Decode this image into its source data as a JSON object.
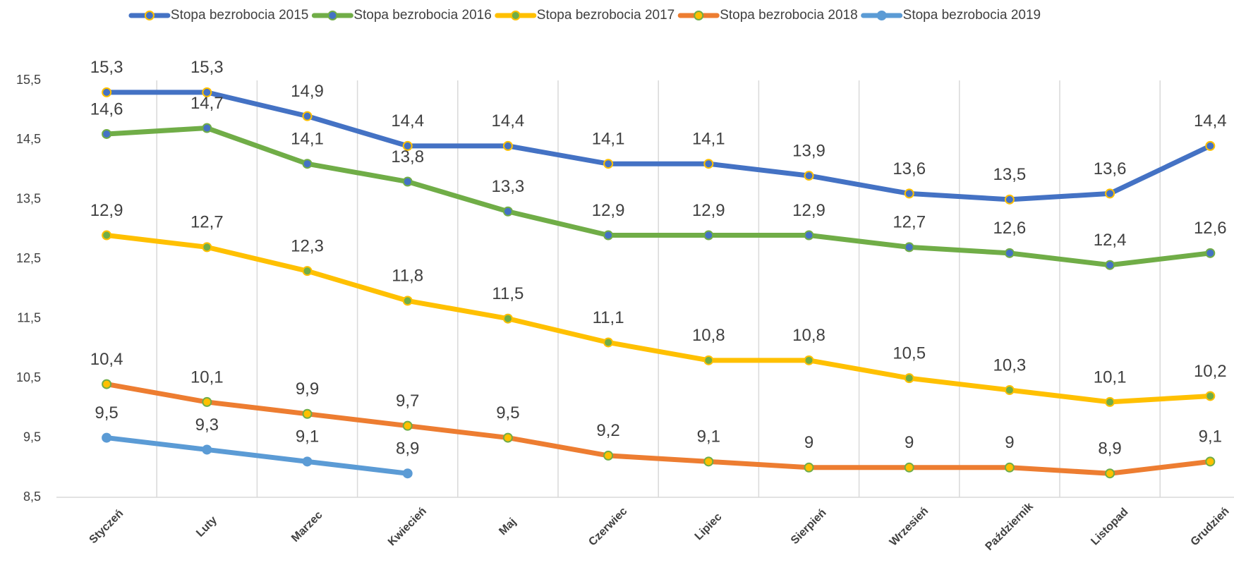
{
  "chart_data": {
    "type": "line",
    "categories": [
      "Styczeń",
      "Luty",
      "Marzec",
      "Kwiecień",
      "Maj",
      "Czerwiec",
      "Lipiec",
      "Sierpień",
      "Wrzesień",
      "Październik",
      "Listopad",
      "Grudzień"
    ],
    "series": [
      {
        "name": "Stopa bezrobocia 2015",
        "color": "#4472c4",
        "marker_fill": "#4472c4",
        "marker_edge": "#ffc000",
        "values": [
          15.3,
          15.3,
          14.9,
          14.4,
          14.4,
          14.1,
          14.1,
          13.9,
          13.6,
          13.5,
          13.6,
          14.4
        ],
        "value_labels": [
          "15,3",
          "15,3",
          "14,9",
          "14,4",
          "14,4",
          "14,1",
          "14,1",
          "13,9",
          "13,6",
          "13,5",
          "13,6",
          "14,4"
        ]
      },
      {
        "name": "Stopa bezrobocia 2016",
        "color": "#70ad47",
        "marker_fill": "#4472c4",
        "marker_edge": "#70ad47",
        "values": [
          14.6,
          14.7,
          14.1,
          13.8,
          13.3,
          12.9,
          12.9,
          12.9,
          12.7,
          12.6,
          12.4,
          12.6
        ],
        "value_labels": [
          "14,6",
          "14,7",
          "14,1",
          "13,8",
          "13,3",
          "12,9",
          "12,9",
          "12,9",
          "12,7",
          "12,6",
          "12,4",
          "12,6"
        ]
      },
      {
        "name": "Stopa bezrobocia 2017",
        "color": "#ffc000",
        "marker_fill": "#70ad47",
        "marker_edge": "#ffc000",
        "values": [
          12.9,
          12.7,
          12.3,
          11.8,
          11.5,
          11.1,
          10.8,
          10.8,
          10.5,
          10.3,
          10.1,
          10.2
        ],
        "value_labels": [
          "12,9",
          "12,7",
          "12,3",
          "11,8",
          "11,5",
          "11,1",
          "10,8",
          "10,8",
          "10,5",
          "10,3",
          "10,1",
          "10,2"
        ]
      },
      {
        "name": "Stopa bezrobocia 2018",
        "color": "#ed7d31",
        "marker_fill": "#ffc000",
        "marker_edge": "#70ad47",
        "values": [
          10.4,
          10.1,
          9.9,
          9.7,
          9.5,
          9.2,
          9.1,
          9,
          9,
          9,
          8.9,
          9.1
        ],
        "value_labels": [
          "10,4",
          "10,1",
          "9,9",
          "9,7",
          "9,5",
          "9,2",
          "9,1",
          "9",
          "9",
          "9",
          "8,9",
          "9,1"
        ]
      },
      {
        "name": "Stopa bezrobocia 2019",
        "color": "#5b9bd5",
        "marker_fill": "#5b9bd5",
        "marker_edge": "#5b9bd5",
        "values": [
          9.5,
          9.3,
          9.1,
          8.9,
          null,
          null,
          null,
          null,
          null,
          null,
          null,
          null
        ],
        "value_labels": [
          "9,5",
          "9,3",
          "9,1",
          "8,9",
          null,
          null,
          null,
          null,
          null,
          null,
          null,
          null
        ]
      }
    ],
    "ylim": [
      8.5,
      15.5
    ],
    "yticks": [
      {
        "value": 8.5,
        "label": "8,5"
      },
      {
        "value": 9.5,
        "label": "9,5"
      },
      {
        "value": 10.5,
        "label": "10,5"
      },
      {
        "value": 11.5,
        "label": "11,5"
      },
      {
        "value": 12.5,
        "label": "12,5"
      },
      {
        "value": 13.5,
        "label": "13,5"
      },
      {
        "value": 14.5,
        "label": "14,5"
      },
      {
        "value": 15.5,
        "label": "15,5"
      }
    ],
    "legend": "top"
  }
}
